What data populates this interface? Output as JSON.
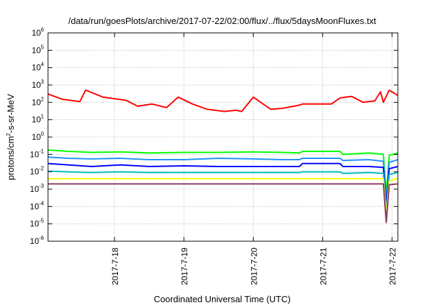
{
  "chart_data": {
    "type": "line",
    "title": "/data/run/goesPlots/archive/2017-07-22/02:00/flux/../flux/5daysMoonFluxes.txt",
    "xlabel": "Coordinated Universal Time (UTC)",
    "ylabel": "protons/cm²-s-sr-MeV",
    "ylabel_parts": {
      "base": "protons/cm",
      "sup": "2",
      "rest": "-s-sr-MeV"
    },
    "y_scale": "log",
    "ylim_exponents": [
      -6,
      6
    ],
    "ytick_exponents": [
      -6,
      -5,
      -4,
      -3,
      -2,
      -1,
      0,
      1,
      2,
      3,
      4,
      5,
      6
    ],
    "ytick_base": "10",
    "xlim": [
      "2017-07-17 01:00",
      "2017-07-22 02:00"
    ],
    "xticks": [
      {
        "label": "2017-7-18",
        "x": "2017-07-18"
      },
      {
        "label": "2017-7-19",
        "x": "2017-07-19"
      },
      {
        "label": "2017-7-20",
        "x": "2017-07-20"
      },
      {
        "label": "2017-7-21",
        "x": "2017-07-21"
      },
      {
        "label": "2017-7-22",
        "x": "2017-07-22"
      }
    ],
    "grid": true,
    "legend": "none",
    "series": [
      {
        "color": "#ff0000",
        "x": [
          "2017-07-17 01:00",
          "2017-07-17 06:00",
          "2017-07-17 12:00",
          "2017-07-17 14:00",
          "2017-07-17 20:00",
          "2017-07-18 04:00",
          "2017-07-18 08:00",
          "2017-07-18 13:00",
          "2017-07-18 18:00",
          "2017-07-18 22:00",
          "2017-07-19 03:00",
          "2017-07-19 08:00",
          "2017-07-19 14:00",
          "2017-07-19 18:00",
          "2017-07-19 20:00",
          "2017-07-20 00:00",
          "2017-07-20 06:00",
          "2017-07-20 10:00",
          "2017-07-20 14:00",
          "2017-07-20 16:00",
          "2017-07-20 17:00",
          "2017-07-21 03:00",
          "2017-07-21 06:00",
          "2017-07-21 10:00",
          "2017-07-21 14:00",
          "2017-07-21 18:00",
          "2017-07-21 20:00",
          "2017-07-21 21:00",
          "2017-07-21 23:00",
          "2017-07-22 02:00"
        ],
        "y": [
          300,
          150,
          110,
          500,
          200,
          130,
          60,
          80,
          50,
          200,
          80,
          40,
          30,
          35,
          30,
          200,
          40,
          45,
          60,
          70,
          80,
          80,
          180,
          220,
          100,
          120,
          400,
          100,
          500,
          250
        ]
      },
      {
        "color": "#00ff00",
        "x": [
          "2017-07-17 01:00",
          "2017-07-17 08:00",
          "2017-07-17 16:00",
          "2017-07-18 02:00",
          "2017-07-18 12:00",
          "2017-07-19 00:00",
          "2017-07-19 12:00",
          "2017-07-20 00:00",
          "2017-07-20 10:00",
          "2017-07-20 16:00",
          "2017-07-20 17:00",
          "2017-07-21 06:00",
          "2017-07-21 07:00",
          "2017-07-21 16:00",
          "2017-07-21 21:00",
          "2017-07-21 22:00",
          "2017-07-21 23:00",
          "2017-07-22 02:00"
        ],
        "y": [
          0.18,
          0.15,
          0.13,
          0.14,
          0.12,
          0.13,
          0.13,
          0.14,
          0.13,
          0.12,
          0.15,
          0.15,
          0.1,
          0.12,
          0.1,
          0.0005,
          0.09,
          0.12
        ]
      },
      {
        "color": "#1e90ff",
        "x": [
          "2017-07-17 01:00",
          "2017-07-17 08:00",
          "2017-07-17 16:00",
          "2017-07-18 02:00",
          "2017-07-18 12:00",
          "2017-07-19 00:00",
          "2017-07-19 12:00",
          "2017-07-20 00:00",
          "2017-07-20 10:00",
          "2017-07-20 16:00",
          "2017-07-20 17:00",
          "2017-07-21 06:00",
          "2017-07-21 07:00",
          "2017-07-21 16:00",
          "2017-07-21 21:00",
          "2017-07-21 22:00",
          "2017-07-21 23:00",
          "2017-07-22 02:00"
        ],
        "y": [
          0.07,
          0.06,
          0.055,
          0.06,
          0.05,
          0.05,
          0.06,
          0.055,
          0.05,
          0.05,
          0.06,
          0.06,
          0.045,
          0.05,
          0.04,
          0.0002,
          0.035,
          0.05
        ]
      },
      {
        "color": "#0000ff",
        "x": [
          "2017-07-17 01:00",
          "2017-07-17 08:00",
          "2017-07-17 16:00",
          "2017-07-18 02:00",
          "2017-07-18 12:00",
          "2017-07-19 00:00",
          "2017-07-19 12:00",
          "2017-07-20 00:00",
          "2017-07-20 10:00",
          "2017-07-20 16:00",
          "2017-07-20 17:00",
          "2017-07-21 06:00",
          "2017-07-21 07:00",
          "2017-07-21 16:00",
          "2017-07-21 21:00",
          "2017-07-21 22:00",
          "2017-07-21 23:00",
          "2017-07-22 02:00"
        ],
        "y": [
          0.03,
          0.025,
          0.02,
          0.025,
          0.02,
          0.022,
          0.02,
          0.02,
          0.02,
          0.02,
          0.03,
          0.03,
          0.02,
          0.02,
          0.018,
          0.0001,
          0.015,
          0.02
        ]
      },
      {
        "color": "#00c0c0",
        "x": [
          "2017-07-17 01:00",
          "2017-07-17 08:00",
          "2017-07-17 16:00",
          "2017-07-18 02:00",
          "2017-07-18 12:00",
          "2017-07-19 00:00",
          "2017-07-19 12:00",
          "2017-07-20 00:00",
          "2017-07-20 10:00",
          "2017-07-20 16:00",
          "2017-07-20 17:00",
          "2017-07-21 06:00",
          "2017-07-21 07:00",
          "2017-07-21 16:00",
          "2017-07-21 21:00",
          "2017-07-21 22:00",
          "2017-07-21 23:00",
          "2017-07-22 02:00"
        ],
        "y": [
          0.011,
          0.01,
          0.009,
          0.01,
          0.009,
          0.009,
          0.009,
          0.009,
          0.009,
          0.009,
          0.01,
          0.01,
          0.008,
          0.009,
          0.008,
          5e-05,
          0.007,
          0.009
        ]
      },
      {
        "color": "#ffff00",
        "x": [
          "2017-07-17 01:00",
          "2017-07-18 00:00",
          "2017-07-19 00:00",
          "2017-07-20 00:00",
          "2017-07-21 00:00",
          "2017-07-21 21:00",
          "2017-07-21 22:00",
          "2017-07-21 23:00",
          "2017-07-22 02:00"
        ],
        "y": [
          0.004,
          0.004,
          0.004,
          0.004,
          0.004,
          0.004,
          3e-05,
          0.003,
          0.004
        ]
      },
      {
        "color": "#8b3a62",
        "x": [
          "2017-07-17 01:00",
          "2017-07-18 00:00",
          "2017-07-19 00:00",
          "2017-07-20 00:00",
          "2017-07-21 00:00",
          "2017-07-21 21:00",
          "2017-07-21 22:00",
          "2017-07-21 23:00",
          "2017-07-22 02:00"
        ],
        "y": [
          0.002,
          0.002,
          0.002,
          0.002,
          0.002,
          0.002,
          1.2e-05,
          0.0018,
          0.002
        ]
      }
    ]
  }
}
